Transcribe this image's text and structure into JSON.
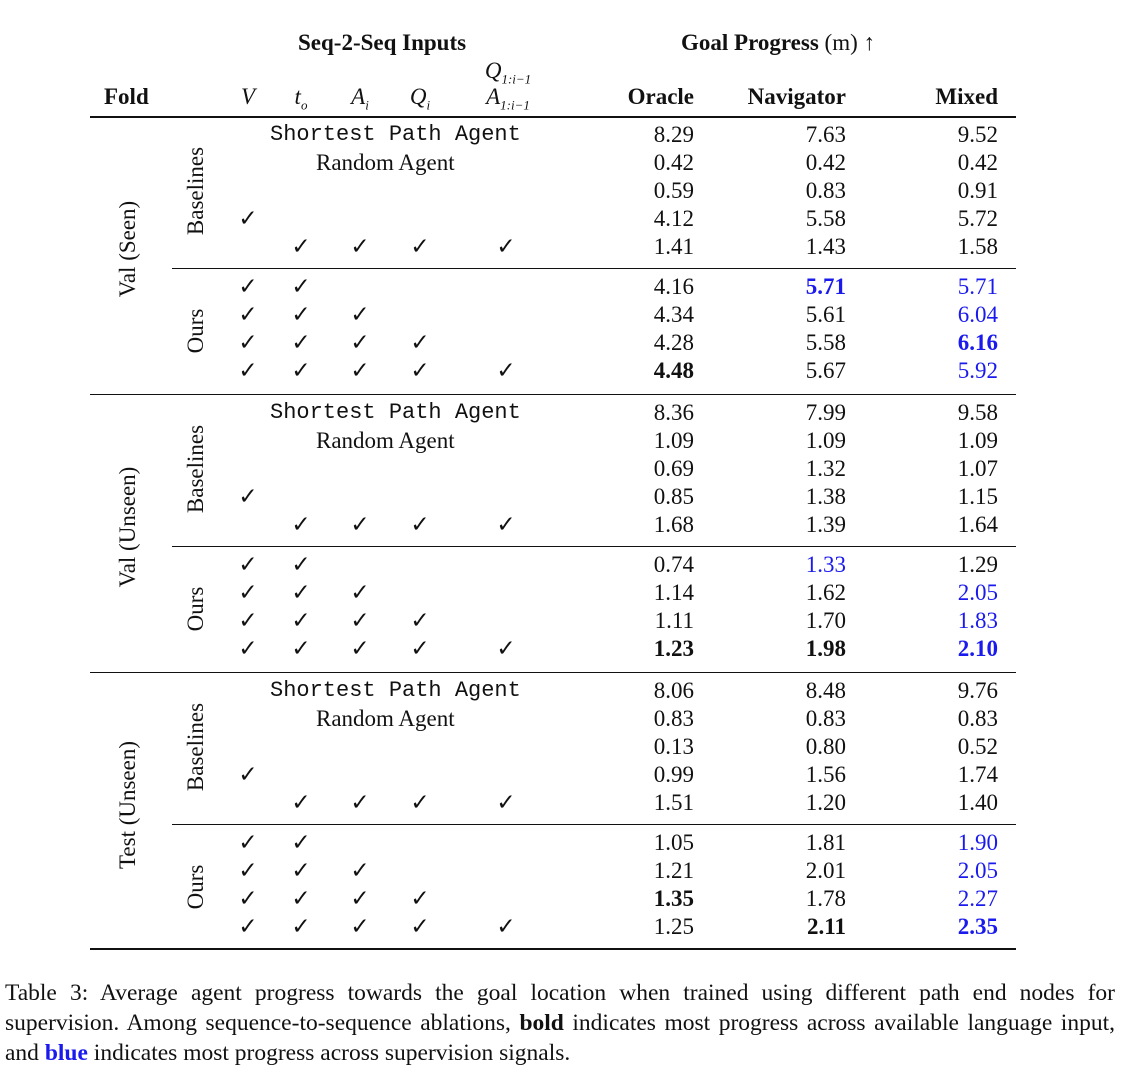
{
  "header": {
    "fold": "Fold",
    "seq_inputs": "Seq-2-Seq Inputs",
    "goal_progress": "Goal Progress",
    "goal_unit": "(m) ↑",
    "inputs": [
      "V",
      "t",
      "A",
      "Q",
      "Q",
      "A"
    ],
    "input_subs": [
      "",
      "o",
      "i",
      "i",
      "1:i−1",
      "1:i−1"
    ],
    "oracle": "Oracle",
    "navigator": "Navigator",
    "mixed": "Mixed"
  },
  "labels": {
    "baselines": "Baselines",
    "ours": "Ours",
    "shortest": "Shortest Path Agent",
    "random": "Random Agent",
    "check": "✓"
  },
  "folds": [
    {
      "name": "Val (Seen)",
      "baselines": [
        [
          "8.29",
          "7.63",
          "9.52"
        ],
        [
          "0.42",
          "0.42",
          "0.42"
        ],
        [
          "0.59",
          "0.83",
          "0.91"
        ],
        [
          "4.12",
          "5.58",
          "5.72"
        ],
        [
          "1.41",
          "1.43",
          "1.58"
        ]
      ],
      "ours": [
        [
          "4.16",
          "5.71",
          "5.71"
        ],
        [
          "4.34",
          "5.61",
          "6.04"
        ],
        [
          "4.28",
          "5.58",
          "6.16"
        ],
        [
          "4.48",
          "5.67",
          "5.92"
        ]
      ]
    },
    {
      "name": "Val (Unseen)",
      "baselines": [
        [
          "8.36",
          "7.99",
          "9.58"
        ],
        [
          "1.09",
          "1.09",
          "1.09"
        ],
        [
          "0.69",
          "1.32",
          "1.07"
        ],
        [
          "0.85",
          "1.38",
          "1.15"
        ],
        [
          "1.68",
          "1.39",
          "1.64"
        ]
      ],
      "ours": [
        [
          "0.74",
          "1.33",
          "1.29"
        ],
        [
          "1.14",
          "1.62",
          "2.05"
        ],
        [
          "1.11",
          "1.70",
          "1.83"
        ],
        [
          "1.23",
          "1.98",
          "2.10"
        ]
      ]
    },
    {
      "name": "Test (Unseen)",
      "baselines": [
        [
          "8.06",
          "8.48",
          "9.76"
        ],
        [
          "0.83",
          "0.83",
          "0.83"
        ],
        [
          "0.13",
          "0.80",
          "0.52"
        ],
        [
          "0.99",
          "1.56",
          "1.74"
        ],
        [
          "1.51",
          "1.20",
          "1.40"
        ]
      ],
      "ours": [
        [
          "1.05",
          "1.81",
          "1.90"
        ],
        [
          "1.21",
          "2.01",
          "2.05"
        ],
        [
          "1.35",
          "1.78",
          "2.27"
        ],
        [
          "1.25",
          "2.11",
          "2.35"
        ]
      ]
    }
  ],
  "caption": {
    "part1": "Table 3: Average agent progress towards the goal location when trained using different path end nodes for supervision. Among sequence-to-sequence ablations, ",
    "bold_word": "bold",
    "part2": " indicates most progress across available language input, and ",
    "blue_word": "blue",
    "part3": " indicates most progress across supervision signals."
  }
}
